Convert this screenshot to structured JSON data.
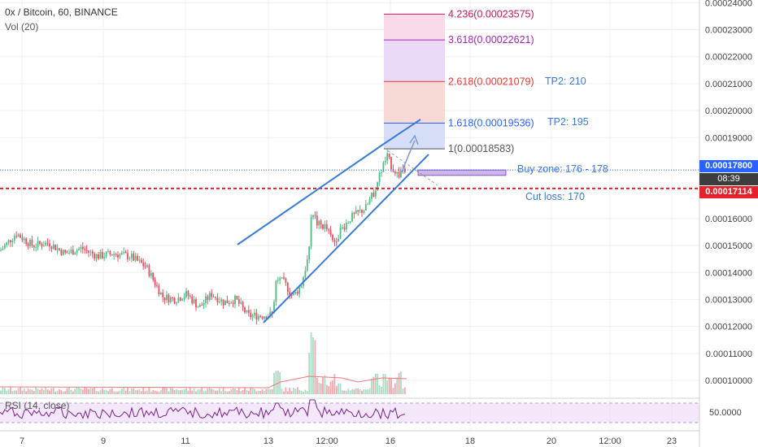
{
  "header": {
    "symbol_line": "0x / Bitcoin, 60, BINANCE",
    "vol_line": "Vol (20)",
    "rsi_line": "RSI (14, close)"
  },
  "colors": {
    "up": "#53b987",
    "down": "#eb4d5c",
    "trendline": "#3a7bd5",
    "cutloss": "#e4222b",
    "price_line": "#2962ff",
    "rsi_line": "#7b1f8a",
    "rsi_band": "#e9d8f6"
  },
  "price_axis": {
    "min": 9.4e-05,
    "max": 0.000241,
    "ticks": [
      "0.00024000",
      "0.00023000",
      "0.00022000",
      "0.00021000",
      "0.00020000",
      "0.00019000",
      "0.00016000",
      "0.00015000",
      "0.00014000",
      "0.00013000",
      "0.00012000",
      "0.00011000",
      "0.00010000"
    ]
  },
  "rsi_axis": {
    "label": "50.0000",
    "upper": 70,
    "lower": 30
  },
  "time_axis": {
    "ticks": [
      "7",
      "9",
      "11",
      "13",
      "12:00",
      "16",
      "18",
      "20",
      "12:00",
      "23"
    ]
  },
  "badges": {
    "last_price": "0.00017800",
    "countdown": "08:39",
    "cut_price": "0.00017114"
  },
  "fib_levels": [
    {
      "label": "4.236(0.00023575)",
      "value": 0.00023575,
      "color": "#c2185b"
    },
    {
      "label": "3.618(0.00022621)",
      "value": 0.00022621,
      "color": "#9c27b0"
    },
    {
      "label": "2.618(0.00021079)",
      "value": 0.00021079,
      "color": "#e53935"
    },
    {
      "label": "1.618(0.00019536)",
      "value": 0.00019536,
      "color": "#2962ff"
    },
    {
      "label": "1(0.00018583)",
      "value": 0.00018583,
      "color": "#555555"
    }
  ],
  "annotations": {
    "tp2_210": "TP2: 210",
    "tp2_195": "TP2: 195",
    "buy_zone": "Buy zone: 176 - 178",
    "cut_loss": "Cut loss: 170"
  },
  "chart_data": {
    "type": "candlestick",
    "title": "0x / Bitcoin, 60, BINANCE",
    "x_ticks": [
      "7",
      "9",
      "11",
      "13",
      "12:00",
      "16",
      "18",
      "20",
      "12:00",
      "23"
    ],
    "price_range": [
      9.4e-05,
      0.000241
    ],
    "close_path": [
      [
        0,
        0.000148
      ],
      [
        20,
        0.0001545
      ],
      [
        40,
        0.00015
      ],
      [
        60,
        0.000151
      ],
      [
        80,
        0.000147
      ],
      [
        100,
        0.000149
      ],
      [
        120,
        0.000146
      ],
      [
        140,
        0.000147
      ],
      [
        160,
        0.000146
      ],
      [
        180,
        0.000142
      ],
      [
        200,
        0.000131
      ],
      [
        215,
        0.00013
      ],
      [
        230,
        0.000132
      ],
      [
        245,
        0.000127
      ],
      [
        260,
        0.000132
      ],
      [
        275,
        0.000129
      ],
      [
        290,
        0.00013
      ],
      [
        305,
        0.000124
      ],
      [
        320,
        0.000124
      ],
      [
        335,
        0.0001245
      ],
      [
        340,
        0.000138
      ],
      [
        350,
        0.000136
      ],
      [
        360,
        0.000131
      ],
      [
        370,
        0.000135
      ],
      [
        380,
        0.000147
      ],
      [
        383,
        0.000164
      ],
      [
        390,
        0.000158
      ],
      [
        400,
        0.000157
      ],
      [
        410,
        0.000151
      ],
      [
        420,
        0.000156
      ],
      [
        430,
        0.00016
      ],
      [
        440,
        0.000162
      ],
      [
        450,
        0.000164
      ],
      [
        460,
        0.00017
      ],
      [
        470,
        0.000179
      ],
      [
        476,
        0.000183
      ],
      [
        482,
        0.000179
      ],
      [
        490,
        0.000176
      ],
      [
        496,
        0.000179
      ],
      [
        500,
        0.000178
      ]
    ],
    "trade_levels": {
      "last": 0.000178,
      "cut_loss": 0.00017114,
      "buy_zone": [
        0.000176,
        0.000178
      ]
    },
    "rsi_mid": 50
  }
}
